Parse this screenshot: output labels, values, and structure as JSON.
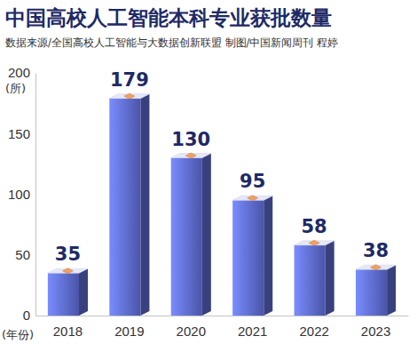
{
  "chart_data": {
    "type": "bar",
    "title": "中国高校人工智能本科专业获批数量",
    "subtitle": "数据来源/全国高校人工智能与大数据创新联盟  制图/中国新闻周刊 程婷",
    "y_label": "(所)",
    "x_label": "(年份)",
    "categories": [
      "2018",
      "2019",
      "2020",
      "2021",
      "2022",
      "2023"
    ],
    "values": [
      35,
      179,
      130,
      95,
      58,
      38
    ],
    "color": "#4a55a8",
    "ylim": [
      0,
      200
    ],
    "yticks": [
      0,
      50,
      100,
      150,
      200
    ],
    "grid": false,
    "data_labels": true
  }
}
